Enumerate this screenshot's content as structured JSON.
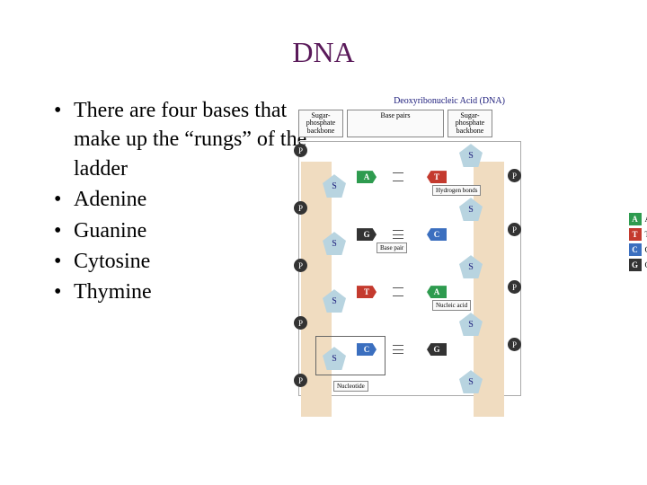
{
  "title": "DNA",
  "bullets": [
    "There are four bases that make up the “rungs” of the ladder",
    "Adenine",
    "Guanine",
    "Cytosine",
    "Thymine"
  ],
  "diagram": {
    "title": "Deoxyribonucleic Acid (DNA)",
    "top_labels": {
      "left": "Sugar-\nphosphate\nbackbone",
      "center": "Base pairs",
      "right": "Sugar-\nphosphate\nbackbone"
    },
    "colors": {
      "A": "#2e9b4f",
      "T": "#c43a2e",
      "C": "#3b6fbf",
      "G": "#333333",
      "sugar": "#b8d4e0",
      "phosphate": "#333333",
      "backbone_strip": "#f0dcc0"
    },
    "rungs": [
      {
        "left": "A",
        "right": "T",
        "bonds": 2,
        "annotation": "Hydrogen bonds",
        "anno_side": "right"
      },
      {
        "left": "G",
        "right": "C",
        "bonds": 3,
        "annotation": "Base pair",
        "anno_side": "center"
      },
      {
        "left": "T",
        "right": "A",
        "bonds": 2,
        "annotation": "Nucleic acid",
        "anno_side": "right"
      },
      {
        "left": "C",
        "right": "G",
        "bonds": 3,
        "annotation": "Nucleotide",
        "anno_side": "bottom"
      }
    ],
    "sugar_label": "S",
    "phosphate_label": "P",
    "legend": [
      {
        "letter": "A",
        "name": "Adenine"
      },
      {
        "letter": "T",
        "name": "Thymine"
      },
      {
        "letter": "C",
        "name": "Cytosine"
      },
      {
        "letter": "G",
        "name": "Guanine"
      }
    ]
  }
}
